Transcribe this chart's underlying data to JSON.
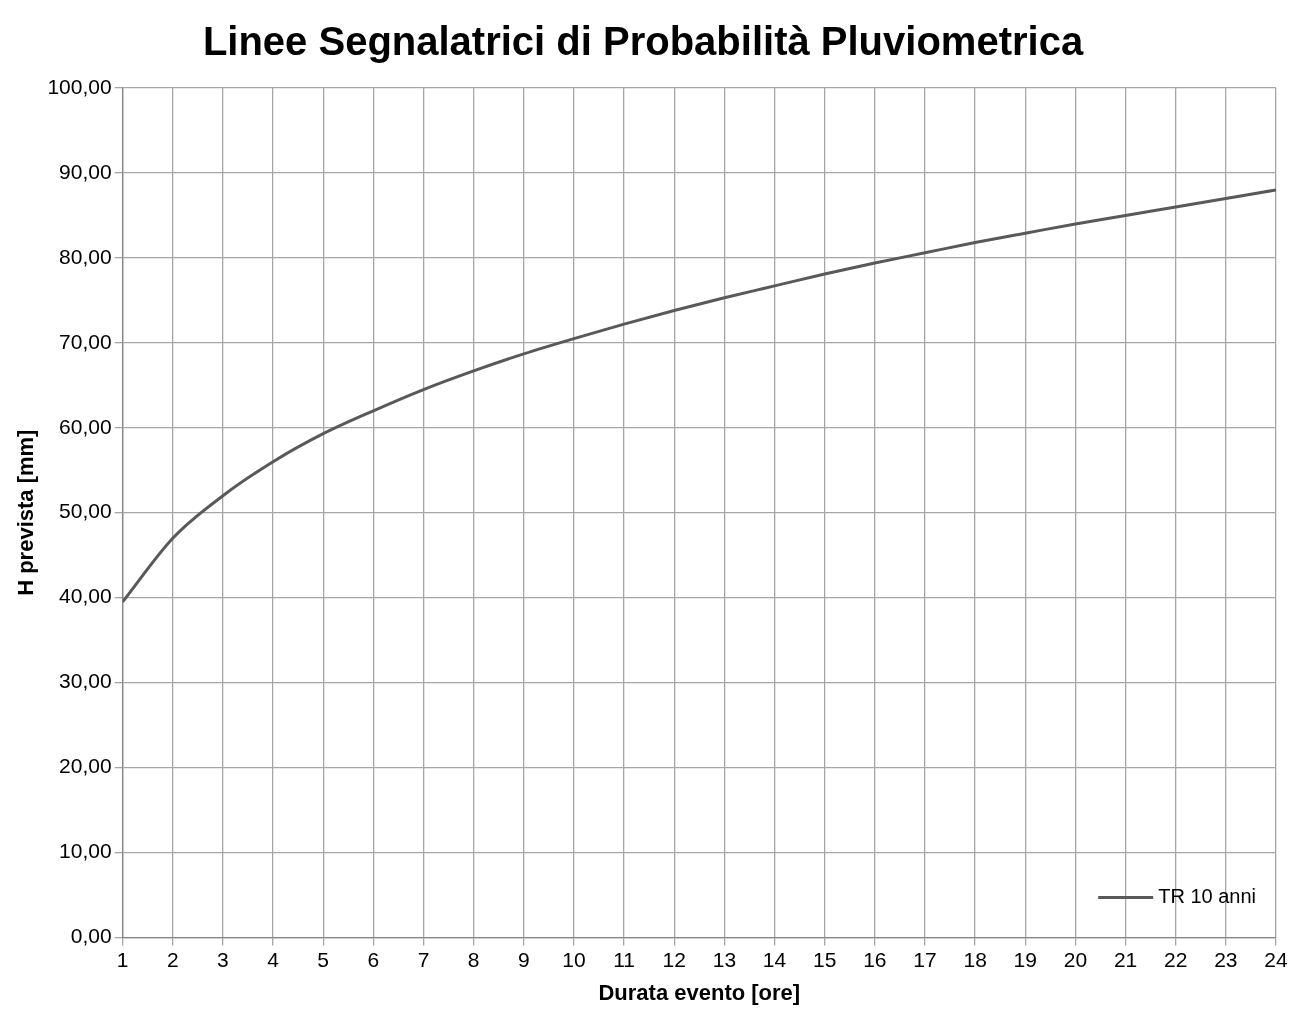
{
  "chart_data": {
    "type": "line",
    "title": "Linee Segnalatrici di Probabilità Pluviometrica",
    "xlabel": "Durata evento [ore]",
    "ylabel": "H prevista [mm]",
    "x": [
      1,
      2,
      3,
      4,
      5,
      6,
      7,
      8,
      9,
      10,
      11,
      12,
      13,
      14,
      15,
      16,
      17,
      18,
      19,
      20,
      21,
      22,
      23,
      24
    ],
    "series": [
      {
        "name": "TR 10 anni",
        "color": "#595959",
        "values": [
          39.5,
          47.0,
          52.0,
          56.0,
          59.3,
          62.0,
          64.5,
          66.7,
          68.7,
          70.5,
          72.2,
          73.8,
          75.3,
          76.7,
          78.1,
          79.4,
          80.6,
          81.8,
          82.9,
          84.0,
          85.0,
          86.0,
          87.0,
          88.0
        ]
      }
    ],
    "xlim": [
      1,
      24
    ],
    "xticks": [
      1,
      2,
      3,
      4,
      5,
      6,
      7,
      8,
      9,
      10,
      11,
      12,
      13,
      14,
      15,
      16,
      17,
      18,
      19,
      20,
      21,
      22,
      23,
      24
    ],
    "ylim": [
      0,
      100
    ],
    "yticks": [
      {
        "value": 0,
        "label": "0,00"
      },
      {
        "value": 10,
        "label": "10,00"
      },
      {
        "value": 20,
        "label": "20,00"
      },
      {
        "value": 30,
        "label": "30,00"
      },
      {
        "value": 40,
        "label": "40,00"
      },
      {
        "value": 50,
        "label": "50,00"
      },
      {
        "value": 60,
        "label": "60,00"
      },
      {
        "value": 70,
        "label": "70,00"
      },
      {
        "value": 80,
        "label": "80,00"
      },
      {
        "value": 90,
        "label": "90,00"
      },
      {
        "value": 100,
        "label": "100,00"
      }
    ],
    "grid": true,
    "legend": "bottom right",
    "marker": "none",
    "line_style": "solid"
  }
}
